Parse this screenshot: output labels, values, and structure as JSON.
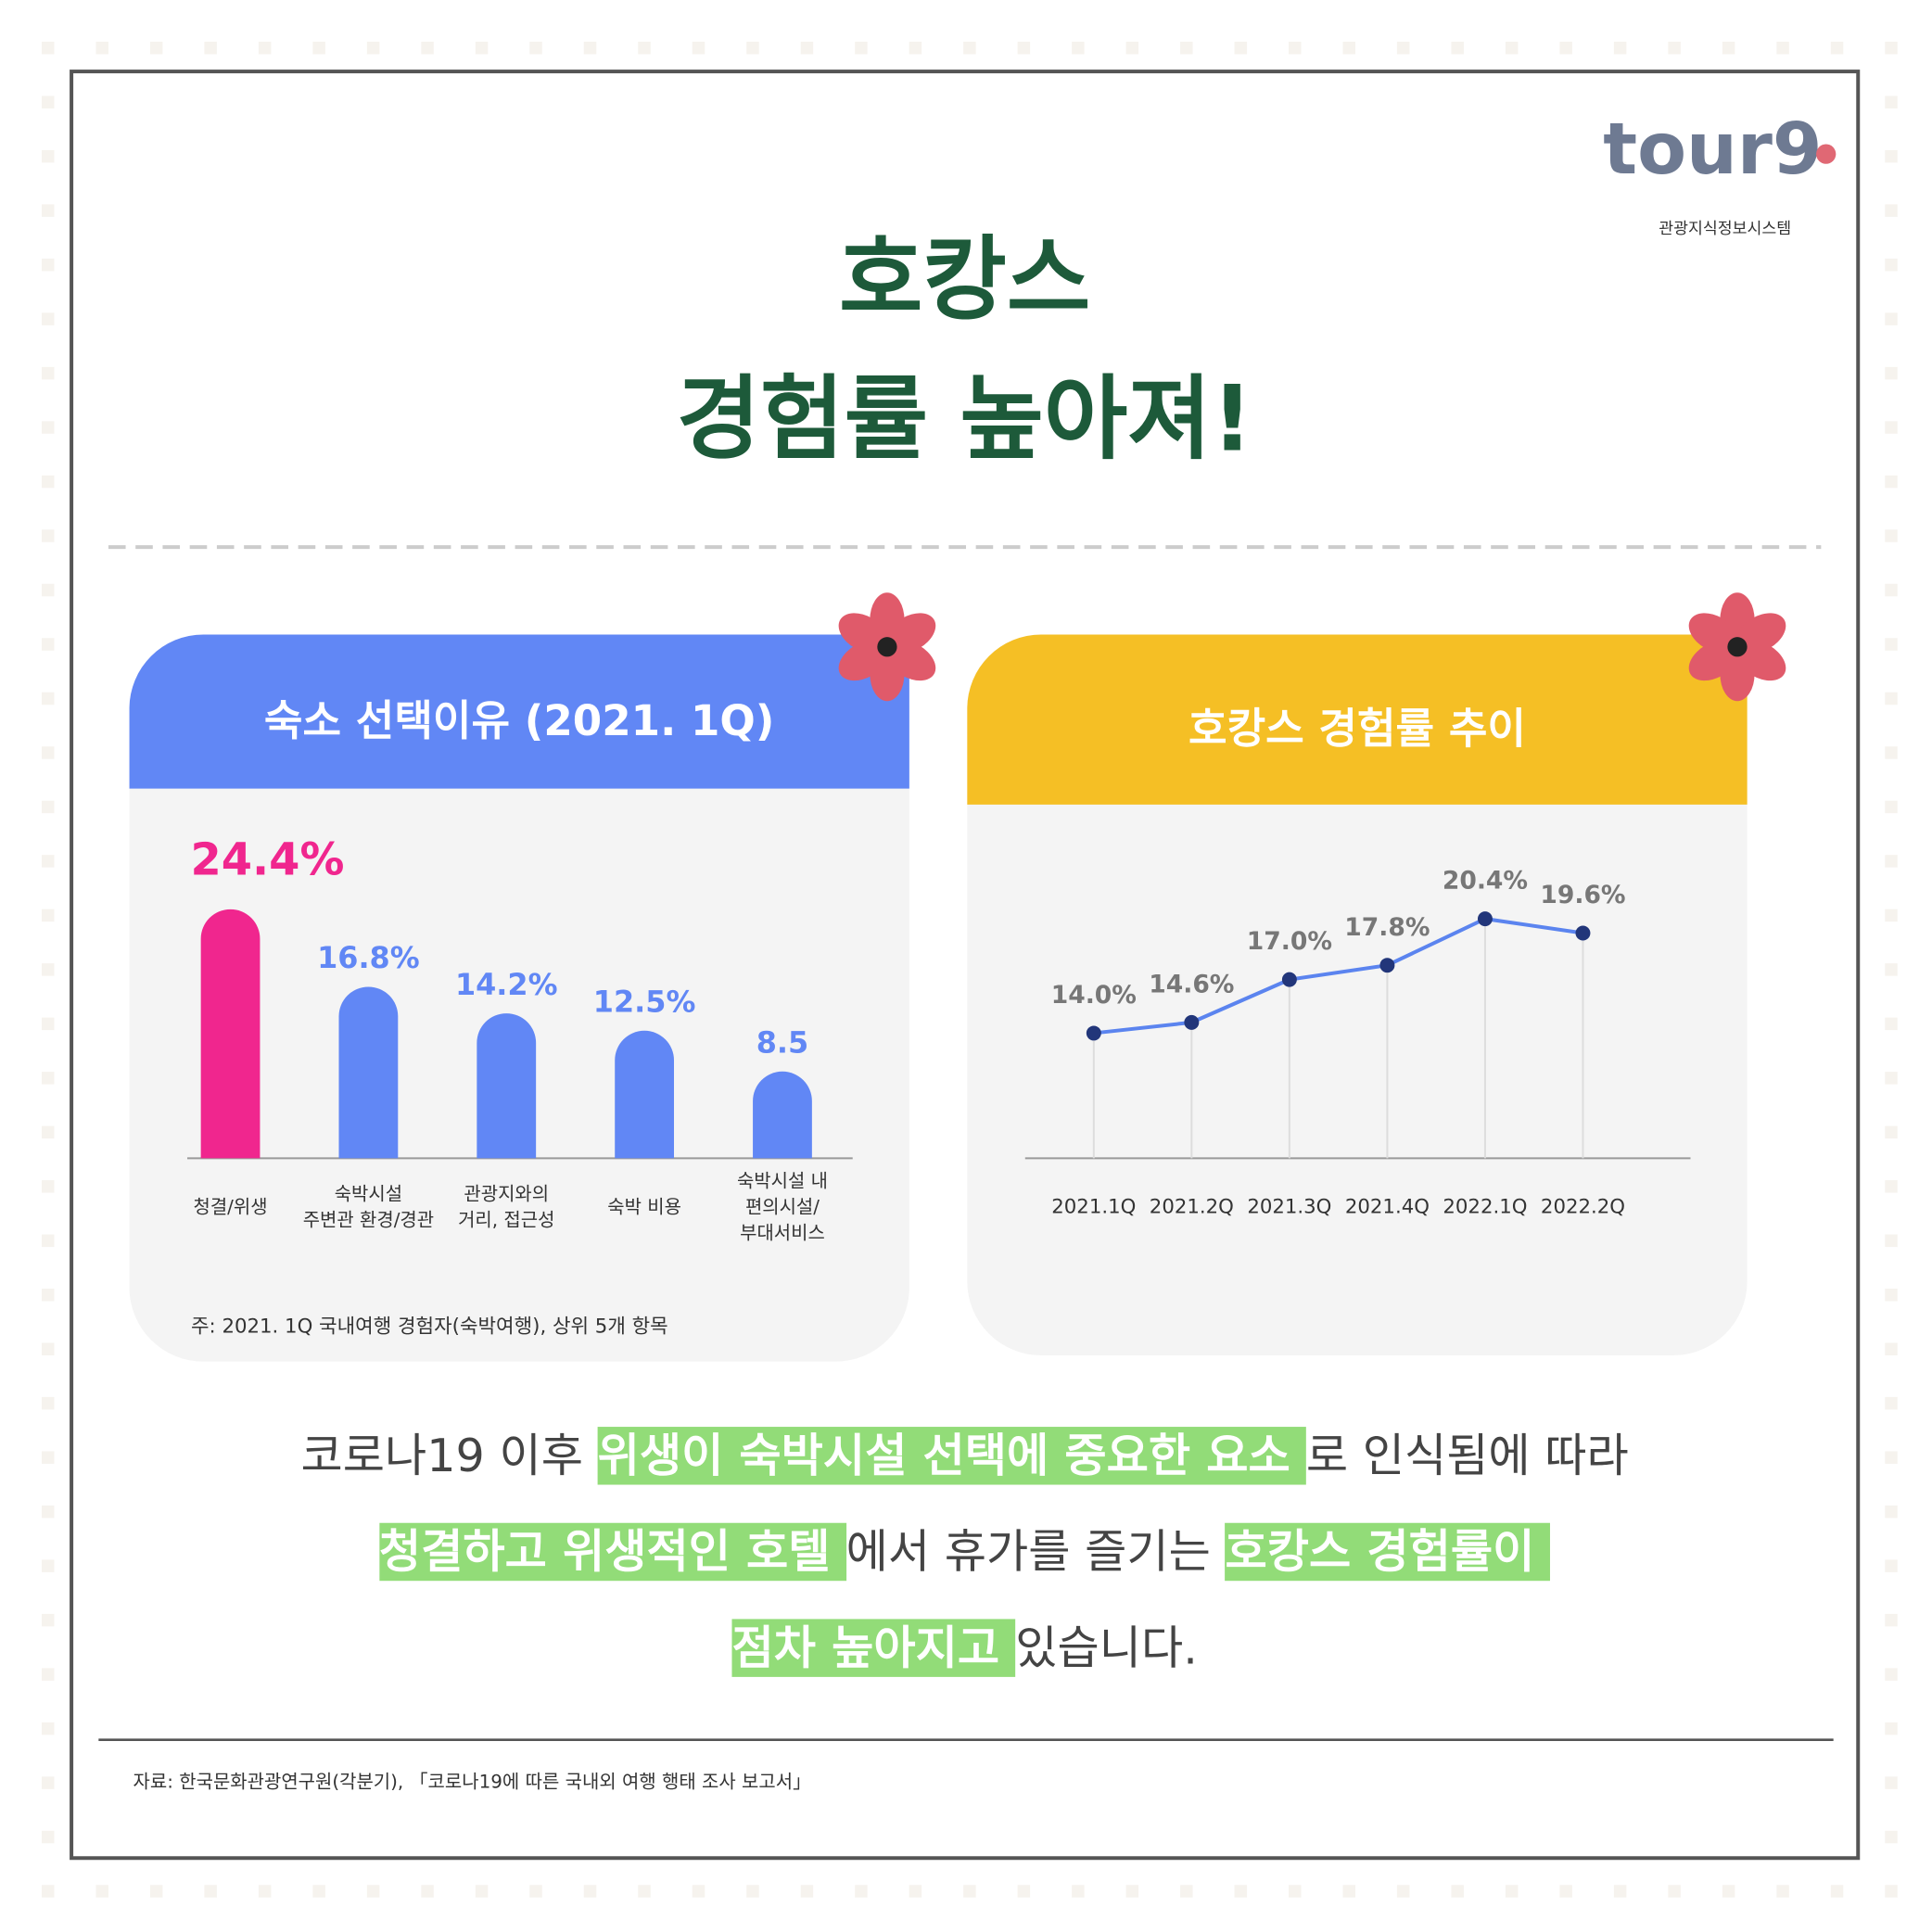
{
  "header": {
    "logo": "tour9",
    "logo_sub": "관광지식정보시스템",
    "title_lines": [
      "호캉스",
      "경험률 높아져!"
    ]
  },
  "chart_data": [
    {
      "type": "bar",
      "title": "숙소 선택이유 (2021. 1Q)",
      "header_color": "#6187f5",
      "categories": [
        "청결/위생",
        "숙박시설\n주변관 환경/경관",
        "관광지와의\n거리, 접근성",
        "숙박 비용",
        "숙박시설 내\n편의시설/\n부대서비스"
      ],
      "values": [
        24.4,
        16.8,
        14.2,
        12.5,
        8.5
      ],
      "value_labels": [
        "24.4%",
        "16.8%",
        "14.2%",
        "12.5%",
        "8.5"
      ],
      "colors": [
        "#f0268e",
        "#6187f5",
        "#6187f5",
        "#6187f5",
        "#6187f5"
      ],
      "ylim": [
        0,
        25
      ],
      "note": "주: 2021. 1Q 국내여행 경험자(숙박여행), 상위 5개 항목"
    },
    {
      "type": "line",
      "title": "호캉스 경험률 추이",
      "header_color": "#f5bf25",
      "categories": [
        "2021.1Q",
        "2021.2Q",
        "2021.3Q",
        "2021.4Q",
        "2022.1Q",
        "2022.2Q"
      ],
      "values": [
        14.0,
        14.6,
        17.0,
        17.8,
        20.4,
        19.6
      ],
      "value_labels": [
        "14.0%",
        "14.6%",
        "17.0%",
        "17.8%",
        "20.4%",
        "19.6%"
      ],
      "color": "#5b84ef",
      "marker_color": "#22367a",
      "ylim": [
        7,
        21
      ]
    }
  ],
  "body": {
    "lines": [
      [
        {
          "text": "코로나19 이후 ",
          "highlight": false
        },
        {
          "text": "위생이 숙박시설 선택에 중요한 요소 ",
          "highlight": true
        },
        {
          "text": "로 인식됨에 따라",
          "highlight": false
        }
      ],
      [
        {
          "text": "청결하고 위생적인 호텔 ",
          "highlight": true
        },
        {
          "text": "에서 휴가를 즐기는 ",
          "highlight": false
        },
        {
          "text": "호캉스 경험률이 ",
          "highlight": true
        }
      ],
      [
        {
          "text": "점차 높아지고 ",
          "highlight": true
        },
        {
          "text": "있습니다.",
          "highlight": false
        }
      ]
    ]
  },
  "source": "자료: 한국문화관광연구원(각분기), 「코로나19에 따른 국내외 여행 행태 조사 보고서」"
}
